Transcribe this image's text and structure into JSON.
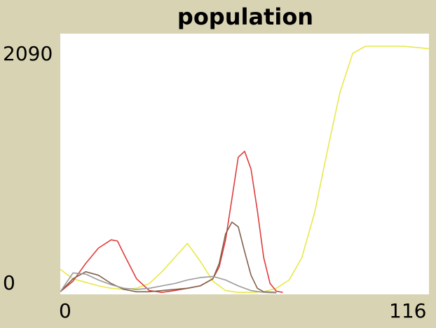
{
  "chart_data": {
    "type": "line",
    "title": "population",
    "xlabel": "",
    "ylabel": "",
    "xlim": [
      0,
      116
    ],
    "ylim": [
      0,
      2090
    ],
    "xticks": [
      "0",
      "116"
    ],
    "yticks": [
      "0",
      "2090"
    ],
    "grid": false,
    "series": [
      {
        "color": "#e8e84a",
        "x": [
          0,
          4,
          8,
          12,
          16,
          20,
          24,
          28,
          32,
          36,
          40,
          44,
          48,
          52,
          56,
          60,
          64,
          68,
          72,
          76,
          80,
          84,
          88,
          92,
          96,
          100,
          104,
          108,
          112,
          116
        ],
        "y": [
          200,
          120,
          90,
          60,
          40,
          30,
          40,
          80,
          180,
          300,
          420,
          270,
          100,
          20,
          5,
          5,
          10,
          40,
          110,
          300,
          680,
          1200,
          1700,
          2030,
          2090,
          2090,
          2090,
          2090,
          2080,
          2070
        ]
      },
      {
        "color": "#e03c3c",
        "x": [
          0,
          4,
          8,
          12,
          16,
          18,
          20,
          24,
          28,
          32,
          36,
          40,
          44,
          48,
          50,
          52,
          54,
          56,
          58,
          60,
          62,
          64,
          66,
          68,
          70
        ],
        "y": [
          10,
          100,
          250,
          380,
          450,
          440,
          330,
          120,
          20,
          5,
          20,
          40,
          60,
          120,
          220,
          450,
          800,
          1150,
          1200,
          1050,
          700,
          300,
          80,
          15,
          5
        ]
      },
      {
        "color": "#806048",
        "x": [
          0,
          4,
          8,
          12,
          16,
          20,
          24,
          28,
          32,
          36,
          40,
          44,
          48,
          50,
          52,
          54,
          56,
          58,
          60,
          62,
          64,
          68
        ],
        "y": [
          10,
          120,
          180,
          150,
          80,
          30,
          10,
          10,
          20,
          30,
          40,
          60,
          120,
          250,
          500,
          600,
          560,
          350,
          150,
          40,
          10,
          5
        ]
      },
      {
        "color": "#9a9a9a",
        "x": [
          0,
          4,
          8,
          12,
          16,
          20,
          24,
          28,
          32,
          36,
          40,
          44,
          48,
          52,
          56,
          60,
          64,
          68
        ],
        "y": [
          10,
          170,
          160,
          110,
          70,
          40,
          30,
          40,
          60,
          80,
          110,
          130,
          140,
          110,
          60,
          20,
          5,
          0
        ]
      }
    ]
  }
}
